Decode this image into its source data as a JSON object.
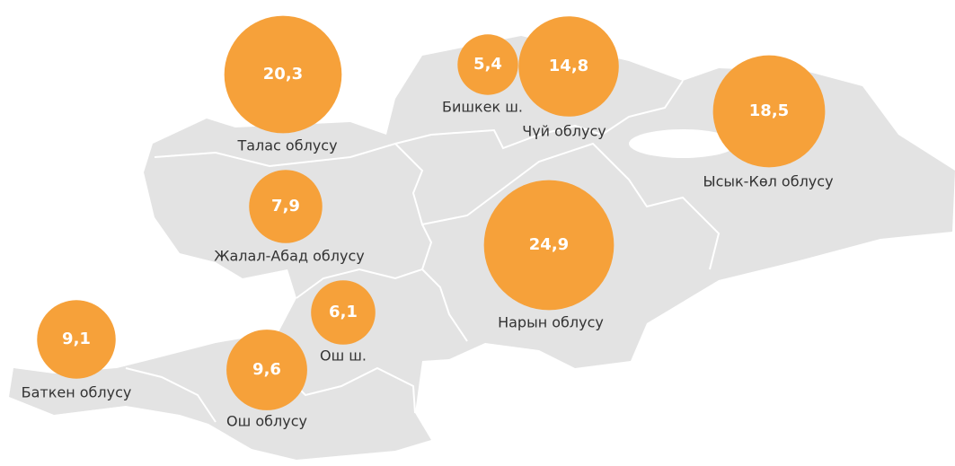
{
  "chart_data": {
    "type": "bubble_map",
    "categories": [
      "Талас облусу",
      "Бишкек ш.",
      "Чүй облусу",
      "Ысык-Көл облусу",
      "Жалал-Абад облусу",
      "Нарын облусу",
      "Ош ш.",
      "Баткен облусу",
      "Ош облусу"
    ],
    "values": [
      20.3,
      5.4,
      14.8,
      18.5,
      7.9,
      24.9,
      6.1,
      9.1,
      9.6
    ],
    "value_labels": [
      "20,3",
      "5,4",
      "14,8",
      "18,5",
      "7,9",
      "24,9",
      "6,1",
      "9,1",
      "9,6"
    ],
    "color": "#f6a13a"
  }
}
